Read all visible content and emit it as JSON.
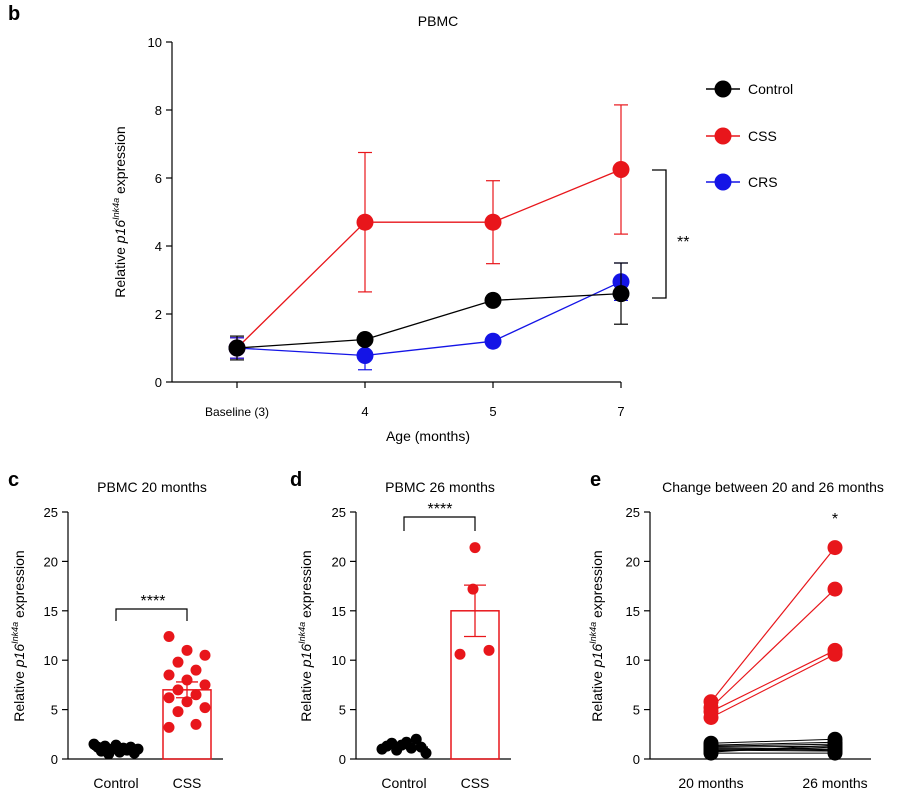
{
  "colors": {
    "control": "#000000",
    "css": "#e8161b",
    "crs": "#1414e6",
    "axis": "#000000"
  },
  "panels": [
    {
      "letter": "b"
    },
    {
      "letter": "c"
    },
    {
      "letter": "d"
    },
    {
      "letter": "e"
    }
  ],
  "chart_data": [
    {
      "panel": "b",
      "type": "line",
      "title": "PBMC",
      "xlabel": "Age (months)",
      "ylabel_prefix": "Relative ",
      "ylabel_gene": "p16",
      "ylabel_sup": "Ink4a",
      "ylabel_suffix": " expression",
      "categories": [
        "Baseline (3)",
        "4",
        "5",
        "7"
      ],
      "ylim": [
        0,
        10
      ],
      "yticks": [
        "0",
        "2",
        "4",
        "6",
        "8",
        "10"
      ],
      "series": [
        {
          "name": "Control",
          "color": "#000000",
          "values": [
            1.0,
            1.25,
            2.4,
            2.6
          ],
          "err": [
            0.35,
            0,
            0,
            0.9
          ]
        },
        {
          "name": "CSS",
          "color": "#e8161b",
          "values": [
            1.0,
            4.7,
            4.7,
            6.25
          ],
          "err": [
            0.3,
            2.05,
            1.22,
            1.9
          ]
        },
        {
          "name": "CRS",
          "color": "#1414e6",
          "values": [
            1.0,
            0.78,
            1.2,
            2.95
          ],
          "err": [
            0.3,
            0.42,
            0,
            0.55
          ]
        }
      ],
      "significance": "**",
      "legend_position": "right"
    },
    {
      "panel": "c",
      "type": "bar",
      "title": "PBMC 20 months",
      "ylabel_prefix": "Relative ",
      "ylabel_gene": "p16",
      "ylabel_sup": "Ink4a",
      "ylabel_suffix": " expression",
      "categories": [
        "Control",
        "CSS"
      ],
      "ylim": [
        0,
        25
      ],
      "yticks": [
        "0",
        "5",
        "10",
        "15",
        "20",
        "25"
      ],
      "means": [
        1.0,
        7.0
      ],
      "sem": [
        0.12,
        0.8
      ],
      "points": [
        [
          1.5,
          1.2,
          0.8,
          1.3,
          0.5,
          1.0,
          1.4,
          0.7,
          1.1,
          0.9,
          1.2,
          0.6,
          1.0
        ],
        [
          12.4,
          11.0,
          10.5,
          9.8,
          9.0,
          8.5,
          8.0,
          7.5,
          7.0,
          6.5,
          6.2,
          5.8,
          5.2,
          4.8,
          3.5,
          3.2
        ]
      ],
      "significance": "****"
    },
    {
      "panel": "d",
      "type": "bar",
      "title": "PBMC 26 months",
      "ylabel_prefix": "Relative ",
      "ylabel_gene": "p16",
      "ylabel_sup": "Ink4a",
      "ylabel_suffix": " expression",
      "categories": [
        "Control",
        "CSS"
      ],
      "ylim": [
        0,
        25
      ],
      "yticks": [
        "0",
        "5",
        "10",
        "15",
        "20",
        "25"
      ],
      "means": [
        1.2,
        15.0
      ],
      "sem": [
        0.15,
        2.6
      ],
      "points": [
        [
          1.0,
          1.3,
          1.6,
          0.9,
          1.4,
          1.7,
          1.1,
          2.0,
          1.2,
          0.6
        ],
        [
          21.4,
          17.2,
          10.6,
          11.0
        ]
      ],
      "significance": "****"
    },
    {
      "panel": "e",
      "type": "line",
      "title": "Change between 20 and 26 months",
      "ylabel_prefix": "Relative ",
      "ylabel_gene": "p16",
      "ylabel_sup": "Ink4a",
      "ylabel_suffix": " expression",
      "categories": [
        "20 months",
        "26 months"
      ],
      "ylim": [
        0,
        25
      ],
      "yticks": [
        "0",
        "5",
        "10",
        "15",
        "20",
        "25"
      ],
      "pairs_css": [
        [
          5.8,
          21.4
        ],
        [
          5.2,
          17.2
        ],
        [
          4.8,
          11.0
        ],
        [
          4.2,
          10.6
        ]
      ],
      "pairs_control": [
        [
          1.6,
          2.0
        ],
        [
          1.4,
          1.7
        ],
        [
          1.3,
          1.5
        ],
        [
          1.2,
          1.3
        ],
        [
          1.1,
          1.0
        ],
        [
          0.9,
          0.8
        ],
        [
          0.8,
          1.2
        ],
        [
          0.6,
          0.6
        ],
        [
          1.0,
          0.9
        ],
        [
          0.7,
          1.4
        ]
      ],
      "significance": "*"
    }
  ]
}
